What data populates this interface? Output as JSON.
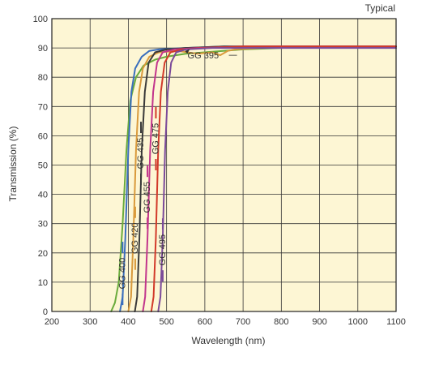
{
  "chart_data": {
    "type": "line",
    "title": "",
    "corner_note": "Typical",
    "xlabel": "Wavelength (nm)",
    "ylabel": "Transmission (%)",
    "xlim": [
      200,
      1100
    ],
    "ylim": [
      0,
      100
    ],
    "x_ticks": [
      200,
      300,
      400,
      500,
      600,
      700,
      800,
      900,
      1000,
      1100
    ],
    "y_ticks": [
      0,
      10,
      20,
      30,
      40,
      50,
      60,
      70,
      80,
      90,
      100
    ],
    "grid": true,
    "plot_background": "#fdf6d4",
    "series": [
      {
        "name": "GG 395",
        "color": "#6aab3c",
        "label_style": "callout",
        "label_at": [
          612,
          87.5
        ],
        "pointer_to": [
          560,
          89.5
        ],
        "points": [
          [
            355,
            0
          ],
          [
            365,
            3
          ],
          [
            375,
            10
          ],
          [
            385,
            30
          ],
          [
            395,
            55
          ],
          [
            405,
            72
          ],
          [
            420,
            80
          ],
          [
            440,
            84
          ],
          [
            470,
            86
          ],
          [
            500,
            87
          ],
          [
            550,
            88
          ],
          [
            600,
            88.5
          ],
          [
            700,
            89.5
          ],
          [
            800,
            90
          ],
          [
            900,
            90.5
          ],
          [
            1100,
            90.5
          ]
        ]
      },
      {
        "name": "GG 400",
        "color": "#3a6ebd",
        "label_style": "vertical",
        "label_at": [
          385,
          13
        ],
        "points": [
          [
            378,
            0
          ],
          [
            385,
            5
          ],
          [
            392,
            25
          ],
          [
            400,
            55
          ],
          [
            408,
            75
          ],
          [
            418,
            83
          ],
          [
            435,
            87
          ],
          [
            455,
            89
          ],
          [
            480,
            89.5
          ],
          [
            550,
            90
          ],
          [
            650,
            90.5
          ],
          [
            800,
            90.5
          ],
          [
            1100,
            90.5
          ]
        ]
      },
      {
        "name": "GG 420",
        "color": "#d99a3c",
        "label_style": "vertical",
        "label_at": [
          418,
          25
        ],
        "points": [
          [
            400,
            0
          ],
          [
            407,
            5
          ],
          [
            413,
            25
          ],
          [
            420,
            55
          ],
          [
            428,
            75
          ],
          [
            438,
            83
          ],
          [
            455,
            87
          ],
          [
            480,
            88.5
          ],
          [
            530,
            89
          ],
          [
            580,
            88
          ],
          [
            620,
            88.5
          ],
          [
            640,
            87.5
          ],
          [
            660,
            89
          ],
          [
            680,
            89.5
          ],
          [
            750,
            90
          ],
          [
            900,
            90.5
          ],
          [
            1100,
            90.5
          ]
        ]
      },
      {
        "name": "GG 435",
        "color": "#3a3a3a",
        "label_style": "vertical",
        "label_at": [
          433,
          54
        ],
        "points": [
          [
            417,
            0
          ],
          [
            423,
            5
          ],
          [
            429,
            25
          ],
          [
            435,
            55
          ],
          [
            443,
            75
          ],
          [
            453,
            85
          ],
          [
            470,
            88.5
          ],
          [
            500,
            89.5
          ],
          [
            550,
            90
          ],
          [
            650,
            90.5
          ],
          [
            800,
            90.5
          ],
          [
            1100,
            90.5
          ]
        ]
      },
      {
        "name": "GG 455",
        "color": "#c2358c",
        "label_style": "vertical",
        "label_at": [
          450,
          39
        ],
        "points": [
          [
            438,
            0
          ],
          [
            444,
            5
          ],
          [
            450,
            25
          ],
          [
            457,
            55
          ],
          [
            465,
            75
          ],
          [
            475,
            85
          ],
          [
            490,
            88.5
          ],
          [
            520,
            89.5
          ],
          [
            580,
            90
          ],
          [
            700,
            90.5
          ],
          [
            1100,
            90.5
          ]
        ]
      },
      {
        "name": "GG 475",
        "color": "#d23a2a",
        "label_style": "vertical",
        "label_at": [
          472,
          59
        ],
        "points": [
          [
            460,
            0
          ],
          [
            466,
            5
          ],
          [
            472,
            25
          ],
          [
            478,
            55
          ],
          [
            485,
            75
          ],
          [
            495,
            85
          ],
          [
            510,
            88.5
          ],
          [
            540,
            89.5
          ],
          [
            600,
            90
          ],
          [
            700,
            90.5
          ],
          [
            1100,
            90.5
          ]
        ]
      },
      {
        "name": "GG 495",
        "color": "#7b4a9a",
        "label_style": "vertical",
        "label_at": [
          490,
          21
        ],
        "points": [
          [
            478,
            0
          ],
          [
            484,
            5
          ],
          [
            490,
            25
          ],
          [
            496,
            55
          ],
          [
            503,
            75
          ],
          [
            512,
            85
          ],
          [
            525,
            88.5
          ],
          [
            550,
            89.5
          ],
          [
            620,
            90
          ],
          [
            800,
            90
          ],
          [
            1100,
            90
          ]
        ]
      }
    ]
  }
}
